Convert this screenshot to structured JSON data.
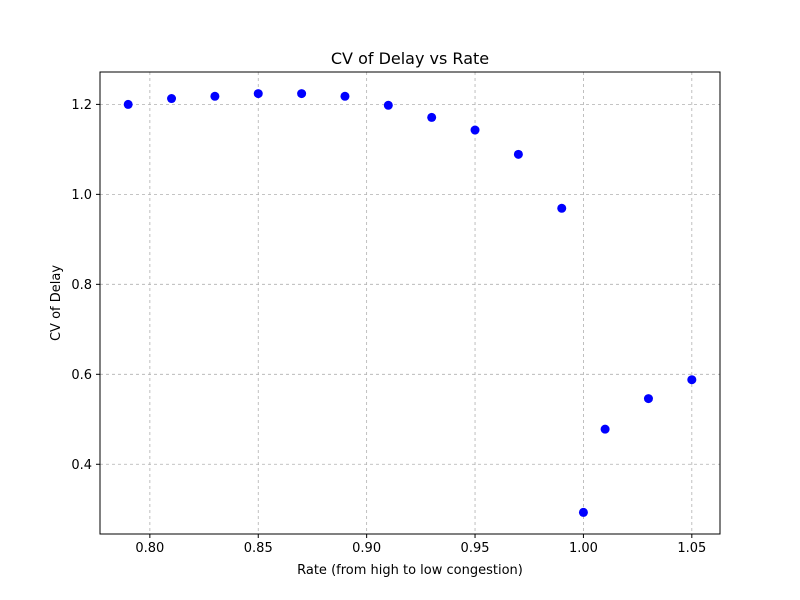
{
  "chart_data": {
    "type": "scatter",
    "title": "CV of Delay vs Rate",
    "xlabel": "Rate (from high to low congestion)",
    "ylabel": "CV of Delay",
    "xlim": [
      0.777,
      1.063
    ],
    "ylim": [
      0.245,
      1.272
    ],
    "grid": true,
    "marker_color": "#0000ff",
    "grid_color": "#b0b0b0",
    "x_ticks": [
      {
        "value": 0.8,
        "label": "0.80"
      },
      {
        "value": 0.85,
        "label": "0.85"
      },
      {
        "value": 0.9,
        "label": "0.90"
      },
      {
        "value": 0.95,
        "label": "0.95"
      },
      {
        "value": 1.0,
        "label": "1.00"
      },
      {
        "value": 1.05,
        "label": "1.05"
      }
    ],
    "y_ticks": [
      {
        "value": 0.4,
        "label": "0.4"
      },
      {
        "value": 0.6,
        "label": "0.6"
      },
      {
        "value": 0.8,
        "label": "0.8"
      },
      {
        "value": 1.0,
        "label": "1.0"
      },
      {
        "value": 1.2,
        "label": "1.2"
      }
    ],
    "series": [
      {
        "name": "CV of Delay",
        "x": [
          0.79,
          0.81,
          0.83,
          0.85,
          0.87,
          0.89,
          0.91,
          0.93,
          0.95,
          0.97,
          0.99,
          1.0,
          1.01,
          1.03,
          1.05
        ],
        "y": [
          1.2,
          1.213,
          1.218,
          1.224,
          1.224,
          1.218,
          1.198,
          1.171,
          1.143,
          1.089,
          0.969,
          0.293,
          0.478,
          0.546,
          0.588
        ]
      }
    ]
  }
}
